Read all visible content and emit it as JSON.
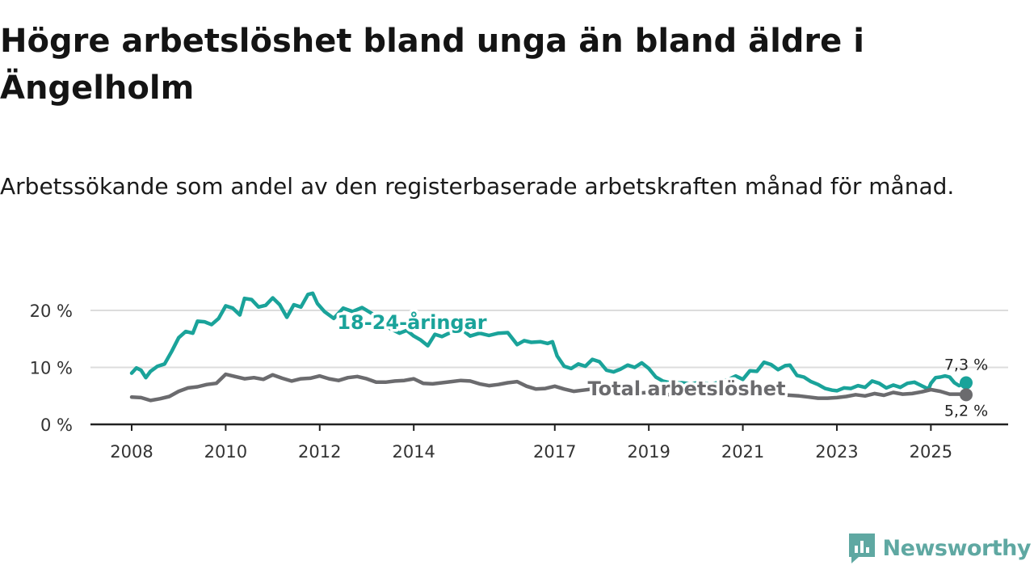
{
  "title": "Högre arbetslöshet bland unga än bland äldre i Ängelholm",
  "subtitle": "Arbetssökande som andel av den registerbaserade arbetskraften månad för månad.",
  "logo": {
    "text": "Newsworthy",
    "icon": "bar-chart-badge-icon",
    "color": "#5fa8a2"
  },
  "chart_data": {
    "type": "line",
    "title": "Högre arbetslöshet bland unga än bland äldre i Ängelholm",
    "xlabel": "",
    "ylabel": "",
    "ylim": [
      0,
      25
    ],
    "xlim": [
      2008.0,
      2025.75
    ],
    "yticks": [
      0,
      10,
      20
    ],
    "ytick_labels": [
      "0 %",
      "10 %",
      "20 %"
    ],
    "xticks": [
      2008,
      2010,
      2012,
      2014,
      2017,
      2019,
      2021,
      2023,
      2025
    ],
    "xtick_labels": [
      "2008",
      "2010",
      "2012",
      "2014",
      "2017",
      "2019",
      "2021",
      "2023",
      "2025"
    ],
    "grid": true,
    "series": [
      {
        "name": "18-24-åringar",
        "color": "#1aa39a",
        "end_label": "7,3 %",
        "points": [
          [
            2008.0,
            9.0
          ],
          [
            2008.1,
            9.9
          ],
          [
            2008.2,
            9.5
          ],
          [
            2008.3,
            8.2
          ],
          [
            2008.4,
            9.3
          ],
          [
            2008.55,
            10.2
          ],
          [
            2008.7,
            10.6
          ],
          [
            2008.85,
            12.8
          ],
          [
            2009.0,
            15.2
          ],
          [
            2009.15,
            16.3
          ],
          [
            2009.3,
            16.0
          ],
          [
            2009.4,
            18.1
          ],
          [
            2009.55,
            18.0
          ],
          [
            2009.7,
            17.5
          ],
          [
            2009.85,
            18.6
          ],
          [
            2010.0,
            20.8
          ],
          [
            2010.15,
            20.4
          ],
          [
            2010.3,
            19.2
          ],
          [
            2010.4,
            22.1
          ],
          [
            2010.55,
            21.9
          ],
          [
            2010.7,
            20.6
          ],
          [
            2010.85,
            20.9
          ],
          [
            2011.0,
            22.2
          ],
          [
            2011.15,
            21.0
          ],
          [
            2011.3,
            18.8
          ],
          [
            2011.45,
            21.0
          ],
          [
            2011.6,
            20.6
          ],
          [
            2011.75,
            22.8
          ],
          [
            2011.85,
            23.0
          ],
          [
            2011.95,
            21.2
          ],
          [
            2012.1,
            19.8
          ],
          [
            2012.3,
            18.6
          ],
          [
            2012.5,
            20.4
          ],
          [
            2012.7,
            19.8
          ],
          [
            2012.9,
            20.5
          ],
          [
            2013.1,
            19.5
          ],
          [
            2013.3,
            18.2
          ],
          [
            2013.5,
            16.8
          ],
          [
            2013.7,
            16.0
          ],
          [
            2013.85,
            16.5
          ],
          [
            2014.0,
            15.5
          ],
          [
            2014.15,
            14.8
          ],
          [
            2014.3,
            13.8
          ],
          [
            2014.45,
            15.8
          ],
          [
            2014.6,
            15.4
          ],
          [
            2014.8,
            16.2
          ],
          [
            2015.0,
            16.8
          ],
          [
            2015.2,
            15.5
          ],
          [
            2015.4,
            16.0
          ],
          [
            2015.6,
            15.6
          ],
          [
            2015.8,
            16.0
          ],
          [
            2016.0,
            16.1
          ],
          [
            2016.2,
            14.0
          ],
          [
            2016.35,
            14.7
          ],
          [
            2016.5,
            14.4
          ],
          [
            2016.7,
            14.5
          ],
          [
            2016.85,
            14.2
          ],
          [
            2016.95,
            14.5
          ],
          [
            2017.05,
            12.0
          ],
          [
            2017.2,
            10.2
          ],
          [
            2017.35,
            9.8
          ],
          [
            2017.5,
            10.6
          ],
          [
            2017.65,
            10.2
          ],
          [
            2017.8,
            11.4
          ],
          [
            2017.95,
            11.0
          ],
          [
            2018.1,
            9.5
          ],
          [
            2018.25,
            9.2
          ],
          [
            2018.4,
            9.7
          ],
          [
            2018.55,
            10.4
          ],
          [
            2018.7,
            10.0
          ],
          [
            2018.85,
            10.8
          ],
          [
            2019.0,
            9.8
          ],
          [
            2019.15,
            8.3
          ],
          [
            2019.3,
            7.6
          ],
          [
            2019.5,
            7.2
          ],
          [
            2019.7,
            7.3
          ],
          [
            2019.9,
            7.1
          ],
          [
            2020.1,
            7.4
          ],
          [
            2020.3,
            7.0
          ],
          [
            2020.5,
            7.4
          ],
          [
            2020.7,
            7.9
          ],
          [
            2020.85,
            8.5
          ],
          [
            2021.0,
            7.9
          ],
          [
            2021.15,
            9.4
          ],
          [
            2021.3,
            9.3
          ],
          [
            2021.45,
            10.9
          ],
          [
            2021.6,
            10.5
          ],
          [
            2021.75,
            9.6
          ],
          [
            2021.9,
            10.3
          ],
          [
            2022.0,
            10.4
          ],
          [
            2022.15,
            8.6
          ],
          [
            2022.3,
            8.3
          ],
          [
            2022.45,
            7.5
          ],
          [
            2022.6,
            7.0
          ],
          [
            2022.75,
            6.3
          ],
          [
            2022.9,
            6.0
          ],
          [
            2023.0,
            5.9
          ],
          [
            2023.15,
            6.4
          ],
          [
            2023.3,
            6.3
          ],
          [
            2023.45,
            6.8
          ],
          [
            2023.6,
            6.5
          ],
          [
            2023.75,
            7.6
          ],
          [
            2023.9,
            7.2
          ],
          [
            2024.05,
            6.4
          ],
          [
            2024.2,
            6.9
          ],
          [
            2024.35,
            6.5
          ],
          [
            2024.5,
            7.2
          ],
          [
            2024.65,
            7.4
          ],
          [
            2024.8,
            6.8
          ],
          [
            2024.95,
            6.2
          ],
          [
            2025.0,
            7.2
          ],
          [
            2025.1,
            8.2
          ],
          [
            2025.2,
            8.3
          ],
          [
            2025.3,
            8.5
          ],
          [
            2025.4,
            8.3
          ],
          [
            2025.5,
            7.3
          ],
          [
            2025.6,
            6.8
          ],
          [
            2025.75,
            7.3
          ]
        ]
      },
      {
        "name": "Total arbetslöshet",
        "color": "#6b6b6e",
        "end_label": "5,2 %",
        "points": [
          [
            2008.0,
            4.8
          ],
          [
            2008.2,
            4.7
          ],
          [
            2008.4,
            4.2
          ],
          [
            2008.6,
            4.5
          ],
          [
            2008.8,
            4.9
          ],
          [
            2009.0,
            5.8
          ],
          [
            2009.2,
            6.4
          ],
          [
            2009.4,
            6.6
          ],
          [
            2009.6,
            7.0
          ],
          [
            2009.8,
            7.2
          ],
          [
            2010.0,
            8.8
          ],
          [
            2010.2,
            8.4
          ],
          [
            2010.4,
            8.0
          ],
          [
            2010.6,
            8.2
          ],
          [
            2010.8,
            7.9
          ],
          [
            2011.0,
            8.7
          ],
          [
            2011.2,
            8.1
          ],
          [
            2011.4,
            7.6
          ],
          [
            2011.6,
            8.0
          ],
          [
            2011.8,
            8.1
          ],
          [
            2012.0,
            8.5
          ],
          [
            2012.2,
            8.0
          ],
          [
            2012.4,
            7.7
          ],
          [
            2012.6,
            8.2
          ],
          [
            2012.8,
            8.4
          ],
          [
            2013.0,
            8.0
          ],
          [
            2013.2,
            7.4
          ],
          [
            2013.4,
            7.4
          ],
          [
            2013.6,
            7.6
          ],
          [
            2013.8,
            7.7
          ],
          [
            2014.0,
            8.0
          ],
          [
            2014.2,
            7.2
          ],
          [
            2014.4,
            7.1
          ],
          [
            2014.6,
            7.3
          ],
          [
            2014.8,
            7.5
          ],
          [
            2015.0,
            7.7
          ],
          [
            2015.2,
            7.6
          ],
          [
            2015.4,
            7.1
          ],
          [
            2015.6,
            6.8
          ],
          [
            2015.8,
            7.0
          ],
          [
            2016.0,
            7.3
          ],
          [
            2016.2,
            7.5
          ],
          [
            2016.4,
            6.7
          ],
          [
            2016.6,
            6.2
          ],
          [
            2016.8,
            6.3
          ],
          [
            2017.0,
            6.7
          ],
          [
            2017.2,
            6.2
          ],
          [
            2017.4,
            5.8
          ],
          [
            2017.6,
            6.0
          ],
          [
            2017.8,
            6.2
          ],
          [
            2018.0,
            6.1
          ],
          [
            2018.2,
            5.7
          ],
          [
            2018.4,
            5.4
          ],
          [
            2018.6,
            5.6
          ],
          [
            2018.8,
            5.5
          ],
          [
            2019.0,
            5.6
          ],
          [
            2019.2,
            5.3
          ],
          [
            2019.4,
            5.2
          ],
          [
            2019.6,
            5.4
          ],
          [
            2019.8,
            5.5
          ],
          [
            2020.0,
            5.6
          ],
          [
            2020.2,
            5.4
          ],
          [
            2020.4,
            5.5
          ],
          [
            2020.6,
            5.7
          ],
          [
            2020.8,
            5.6
          ],
          [
            2021.0,
            5.8
          ],
          [
            2021.2,
            6.0
          ],
          [
            2021.4,
            5.6
          ],
          [
            2021.6,
            5.4
          ],
          [
            2021.8,
            5.2
          ],
          [
            2022.0,
            5.1
          ],
          [
            2022.2,
            5.0
          ],
          [
            2022.4,
            4.8
          ],
          [
            2022.6,
            4.6
          ],
          [
            2022.8,
            4.6
          ],
          [
            2023.0,
            4.7
          ],
          [
            2023.2,
            4.9
          ],
          [
            2023.4,
            5.2
          ],
          [
            2023.6,
            5.0
          ],
          [
            2023.8,
            5.4
          ],
          [
            2024.0,
            5.1
          ],
          [
            2024.2,
            5.6
          ],
          [
            2024.4,
            5.3
          ],
          [
            2024.6,
            5.4
          ],
          [
            2024.8,
            5.7
          ],
          [
            2025.0,
            6.1
          ],
          [
            2025.2,
            5.8
          ],
          [
            2025.4,
            5.3
          ],
          [
            2025.6,
            5.3
          ],
          [
            2025.75,
            5.2
          ]
        ]
      }
    ]
  }
}
